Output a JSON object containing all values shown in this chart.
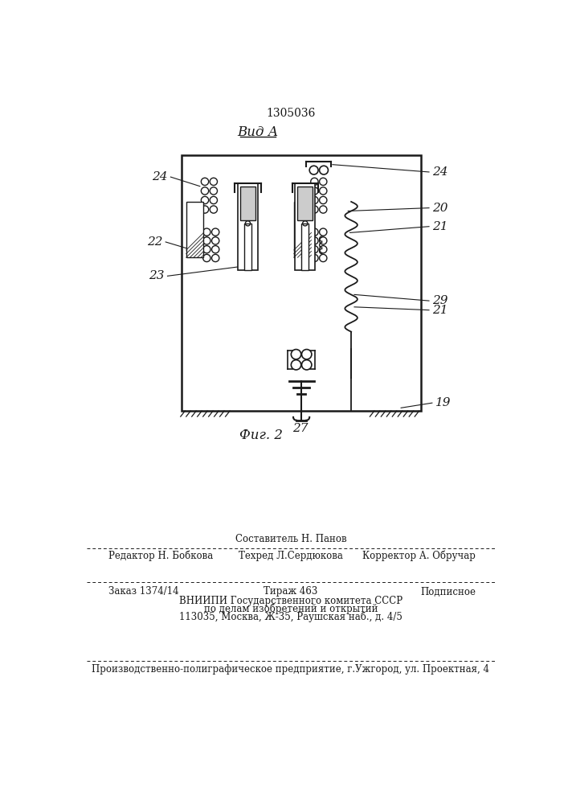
{
  "title_number": "1305036",
  "view_label": "Вид А",
  "fig_label": "Фиг. 2",
  "bg_color": "#ffffff",
  "line_color": "#1a1a1a",
  "footer_top": "Составитель Н. Панов",
  "footer_left": "Редактор Н. Бобкова",
  "footer_center": "Техред Л.Сердюкова",
  "footer_right": "Корректор А. Обручар",
  "footer2_left": "Заказ 1374/14",
  "footer2_center": "Тираж 463",
  "footer2_right": "Подписное",
  "footer3": "ВНИИПИ Государственного комитета СССР",
  "footer4": "по делам изобретений и открытий",
  "footer5": "113035, Москва, Ж-35, Раушская наб., д. 4/5",
  "footer6": "Производственно-полиграфическое предприятие, г.Ужгород, ул. Проектная, 4"
}
